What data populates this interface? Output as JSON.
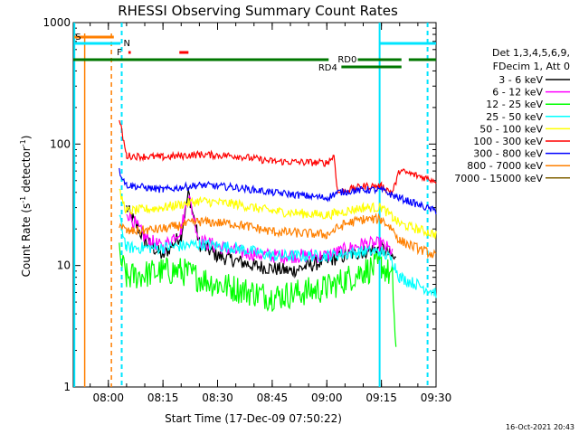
{
  "chart_data": {
    "type": "line",
    "title": "RHESSI Observing Summary Count Rates",
    "xlabel": "Start Time (17-Dec-09 07:50:22)",
    "ylabel": "Count Rate (s⁻¹ detector⁻¹)",
    "ylabel_main": "Count Rate (s",
    "ylabel_sup1": "-1",
    "ylabel_mid": " detector",
    "ylabel_sup2": "-1",
    "ylabel_end": ")",
    "y_scale": "log",
    "ylim": [
      1,
      1000
    ],
    "xlim": [
      "07:50:22",
      "09:30:00"
    ],
    "x_ticks": [
      "08:00",
      "08:15",
      "08:30",
      "08:45",
      "09:00",
      "09:15",
      "09:30"
    ],
    "y_ticks": [
      "1",
      "10",
      "100",
      "1000"
    ],
    "legend_header": [
      "Det 1,3,4,5,6,9,",
      "FDecim 1, Att 0"
    ],
    "legend_position": "right",
    "timestamp": "16-Oct-2021 20:43",
    "series": [
      {
        "name": "3 - 6 keV",
        "color": "#000000",
        "points": [
          [
            "07:50:22",
            null
          ],
          [
            "08:05",
            30
          ],
          [
            "08:10",
            16
          ],
          [
            "08:15",
            12
          ],
          [
            "08:20",
            18
          ],
          [
            "08:22",
            40
          ],
          [
            "08:25",
            15
          ],
          [
            "08:30",
            12
          ],
          [
            "08:40",
            10
          ],
          [
            "08:50",
            9
          ],
          [
            "09:00",
            11
          ],
          [
            "09:10",
            13
          ],
          [
            "09:15",
            14
          ],
          [
            "09:19",
            11
          ],
          [
            "09:20",
            null
          ]
        ]
      },
      {
        "name": "6 - 12 keV",
        "color": "#ff00ff",
        "points": [
          [
            "08:05",
            28
          ],
          [
            "08:10",
            17
          ],
          [
            "08:15",
            14
          ],
          [
            "08:20",
            20
          ],
          [
            "08:22",
            38
          ],
          [
            "08:25",
            16
          ],
          [
            "08:35",
            13
          ],
          [
            "08:45",
            12
          ],
          [
            "09:00",
            12
          ],
          [
            "09:10",
            15
          ],
          [
            "09:15",
            15
          ],
          [
            "09:18",
            13
          ],
          [
            "09:20",
            null
          ]
        ]
      },
      {
        "name": "12 - 25 keV",
        "color": "#00ff00",
        "points": [
          [
            "08:03",
            12
          ],
          [
            "08:05",
            8
          ],
          [
            "08:15",
            9
          ],
          [
            "08:20",
            9
          ],
          [
            "08:30",
            7
          ],
          [
            "08:45",
            5.5
          ],
          [
            "09:00",
            6.5
          ],
          [
            "09:10",
            9
          ],
          [
            "09:15",
            10
          ],
          [
            "09:18",
            8
          ],
          [
            "09:19",
            2
          ]
        ]
      },
      {
        "name": "25 - 50 keV",
        "color": "#00ffff",
        "points": [
          [
            "08:03",
            25
          ],
          [
            "08:05",
            14
          ],
          [
            "08:15",
            14
          ],
          [
            "08:25",
            15
          ],
          [
            "08:35",
            14
          ],
          [
            "08:45",
            12
          ],
          [
            "09:00",
            12
          ],
          [
            "09:10",
            13
          ],
          [
            "09:15",
            13
          ],
          [
            "09:18",
            11
          ],
          [
            "09:20",
            8
          ],
          [
            "09:30",
            6
          ]
        ]
      },
      {
        "name": "50 - 100 keV",
        "color": "#ffff00",
        "points": [
          [
            "08:03",
            40
          ],
          [
            "08:05",
            28
          ],
          [
            "08:15",
            30
          ],
          [
            "08:25",
            34
          ],
          [
            "08:35",
            32
          ],
          [
            "08:45",
            28
          ],
          [
            "09:00",
            26
          ],
          [
            "09:10",
            30
          ],
          [
            "09:15",
            30
          ],
          [
            "09:18",
            25
          ],
          [
            "09:20",
            22
          ],
          [
            "09:30",
            18
          ]
        ]
      },
      {
        "name": "100 - 300 keV",
        "color": "#ff0000",
        "points": [
          [
            "08:03",
            160
          ],
          [
            "08:05",
            80
          ],
          [
            "08:15",
            78
          ],
          [
            "08:25",
            82
          ],
          [
            "08:35",
            80
          ],
          [
            "08:45",
            72
          ],
          [
            "09:00",
            70
          ],
          [
            "09:02",
            80
          ],
          [
            "09:03",
            40
          ],
          [
            "09:10",
            45
          ],
          [
            "09:15",
            45
          ],
          [
            "09:18",
            40
          ],
          [
            "09:20",
            60
          ],
          [
            "09:30",
            50
          ]
        ]
      },
      {
        "name": "300 - 800 keV",
        "color": "#0000ff",
        "points": [
          [
            "08:03",
            60
          ],
          [
            "08:05",
            46
          ],
          [
            "08:15",
            42
          ],
          [
            "08:25",
            46
          ],
          [
            "08:35",
            44
          ],
          [
            "08:45",
            40
          ],
          [
            "09:00",
            36
          ],
          [
            "09:03",
            40
          ],
          [
            "09:10",
            42
          ],
          [
            "09:15",
            42
          ],
          [
            "09:18",
            38
          ],
          [
            "09:20",
            36
          ],
          [
            "09:30",
            28
          ]
        ]
      },
      {
        "name": "800 - 7000 keV",
        "color": "#ff8000",
        "points": [
          [
            "08:03",
            22
          ],
          [
            "08:05",
            19
          ],
          [
            "08:15",
            20
          ],
          [
            "08:25",
            23
          ],
          [
            "08:35",
            22
          ],
          [
            "08:45",
            19
          ],
          [
            "09:00",
            18
          ],
          [
            "09:05",
            22
          ],
          [
            "09:10",
            24
          ],
          [
            "09:15",
            24
          ],
          [
            "09:18",
            20
          ],
          [
            "09:20",
            16
          ],
          [
            "09:30",
            12
          ]
        ]
      },
      {
        "name": "7000 - 15000 keV",
        "color": "#806000",
        "points": []
      }
    ],
    "attenuator_labels": [
      "S",
      "N",
      "F",
      "RD0",
      "RD4"
    ]
  }
}
